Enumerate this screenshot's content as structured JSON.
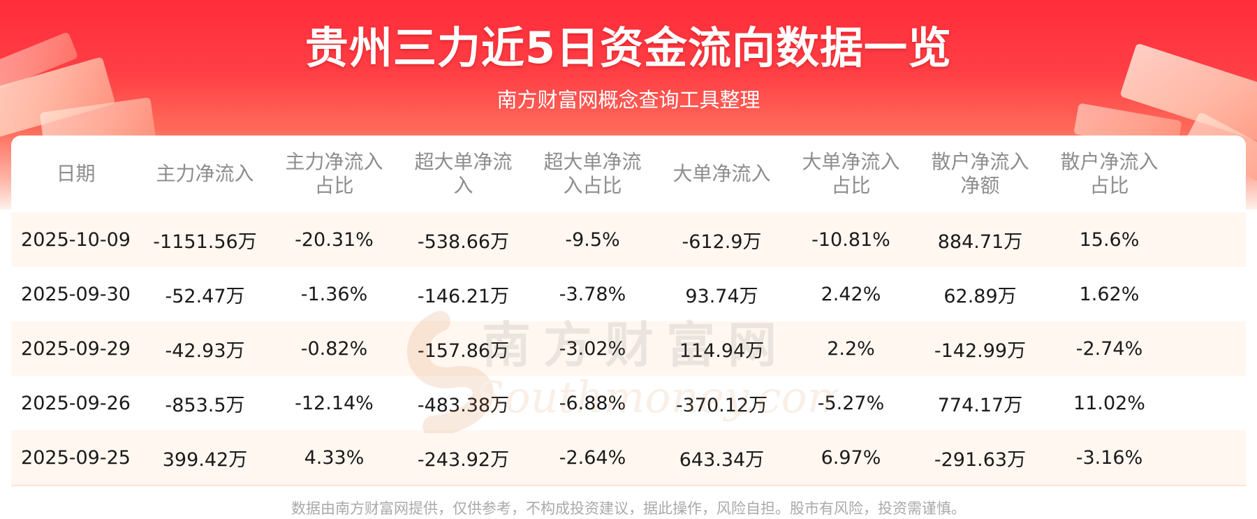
{
  "header": {
    "title": "贵州三力近5日资金流向数据一览",
    "subtitle": "南方财富网概念查询工具整理"
  },
  "table": {
    "columns": [
      [
        "日期"
      ],
      [
        "主力净流入"
      ],
      [
        "主力净流入",
        "占比"
      ],
      [
        "超大单净流",
        "入"
      ],
      [
        "超大单净流",
        "入占比"
      ],
      [
        "大单净流入"
      ],
      [
        "大单净流入",
        "占比"
      ],
      [
        "散户净流入",
        "净额"
      ],
      [
        "散户净流入",
        "占比"
      ]
    ],
    "rows": [
      [
        "2025-10-09",
        "-1151.56万",
        "-20.31%",
        "-538.66万",
        "-9.5%",
        "-612.9万",
        "-10.81%",
        "884.71万",
        "15.6%"
      ],
      [
        "2025-09-30",
        "-52.47万",
        "-1.36%",
        "-146.21万",
        "-3.78%",
        "93.74万",
        "2.42%",
        "62.89万",
        "1.62%"
      ],
      [
        "2025-09-29",
        "-42.93万",
        "-0.82%",
        "-157.86万",
        "-3.02%",
        "114.94万",
        "2.2%",
        "-142.99万",
        "-2.74%"
      ],
      [
        "2025-09-26",
        "-853.5万",
        "-12.14%",
        "-483.38万",
        "-6.88%",
        "-370.12万",
        "-5.27%",
        "774.17万",
        "11.02%"
      ],
      [
        "2025-09-25",
        "399.42万",
        "4.33%",
        "-243.92万",
        "-2.64%",
        "643.34万",
        "6.97%",
        "-291.63万",
        "-3.16%"
      ]
    ]
  },
  "watermark": {
    "cn": "南方财富网",
    "en": "Southmoney.com"
  },
  "footer": {
    "disclaimer": "数据由南方财富网提供，仅供参考，不构成投资建议，据此操作，风险自担。股市有风险，投资需谨慎。"
  },
  "colors": {
    "banner_red": "#ff2c3a",
    "row_stripe": "#fff7f0",
    "header_text": "#8d8d8d",
    "cell_text": "#1a1a1a",
    "footer_text": "#a9a9a9"
  }
}
